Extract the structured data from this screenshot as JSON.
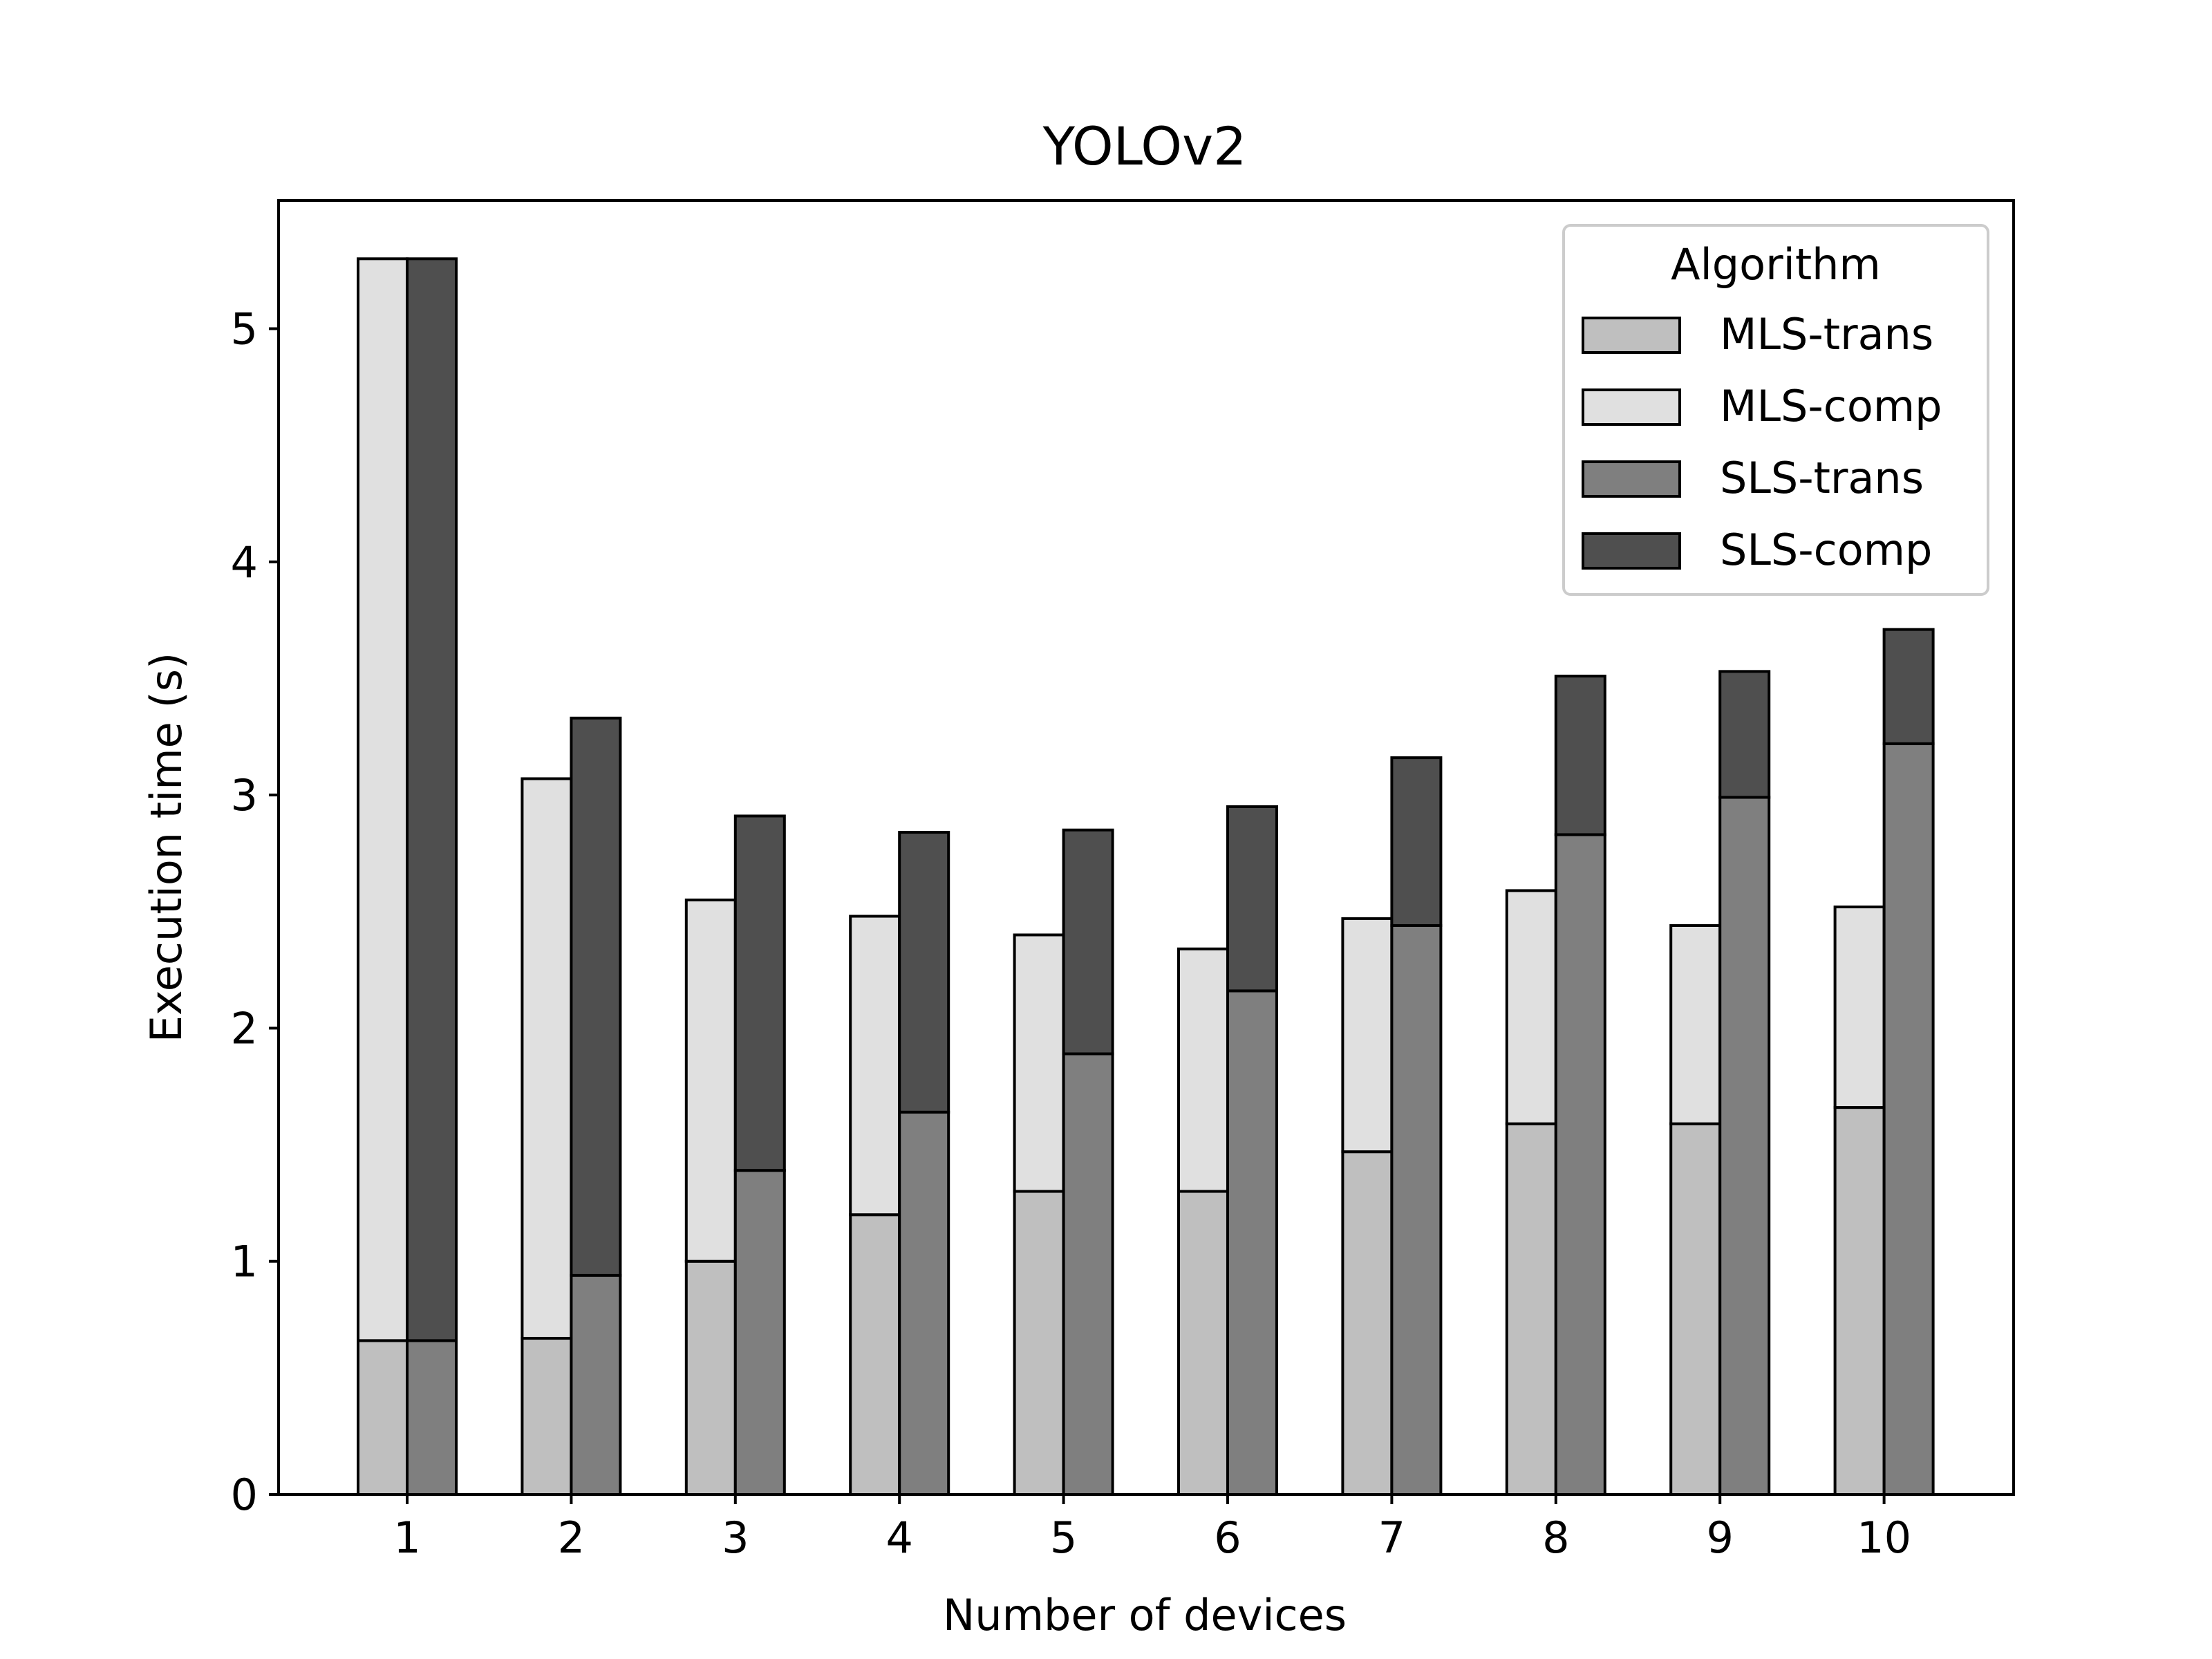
{
  "chart_data": {
    "type": "bar",
    "title": "YOLOv2",
    "xlabel": "Number of devices",
    "ylabel": "Execution time (s)",
    "categories": [
      "1",
      "2",
      "3",
      "4",
      "5",
      "6",
      "7",
      "8",
      "9",
      "10"
    ],
    "ylim": [
      0,
      5.55
    ],
    "yticks": [
      0,
      1,
      2,
      3,
      4,
      5
    ],
    "grid": false,
    "legend": {
      "title": "Algorithm",
      "placement": "top-right"
    },
    "stacks": [
      {
        "name": "MLS",
        "series": [
          {
            "name": "MLS-trans",
            "color": "#bfbfbf",
            "values": [
              0.66,
              0.67,
              1.0,
              1.2,
              1.3,
              1.3,
              1.47,
              1.59,
              1.59,
              1.66
            ]
          },
          {
            "name": "MLS-comp",
            "color": "#e0e0e0",
            "values": [
              4.64,
              2.4,
              1.55,
              1.28,
              1.1,
              1.04,
              1.0,
              1.0,
              0.85,
              0.86
            ]
          }
        ]
      },
      {
        "name": "SLS",
        "series": [
          {
            "name": "SLS-trans",
            "color": "#7f7f7f",
            "values": [
              0.66,
              0.94,
              1.39,
              1.64,
              1.89,
              2.16,
              2.44,
              2.83,
              2.99,
              3.22
            ]
          },
          {
            "name": "SLS-comp",
            "color": "#4f4f4f",
            "values": [
              4.64,
              2.39,
              1.52,
              1.2,
              0.96,
              0.79,
              0.72,
              0.68,
              0.54,
              0.49
            ]
          }
        ]
      }
    ]
  }
}
